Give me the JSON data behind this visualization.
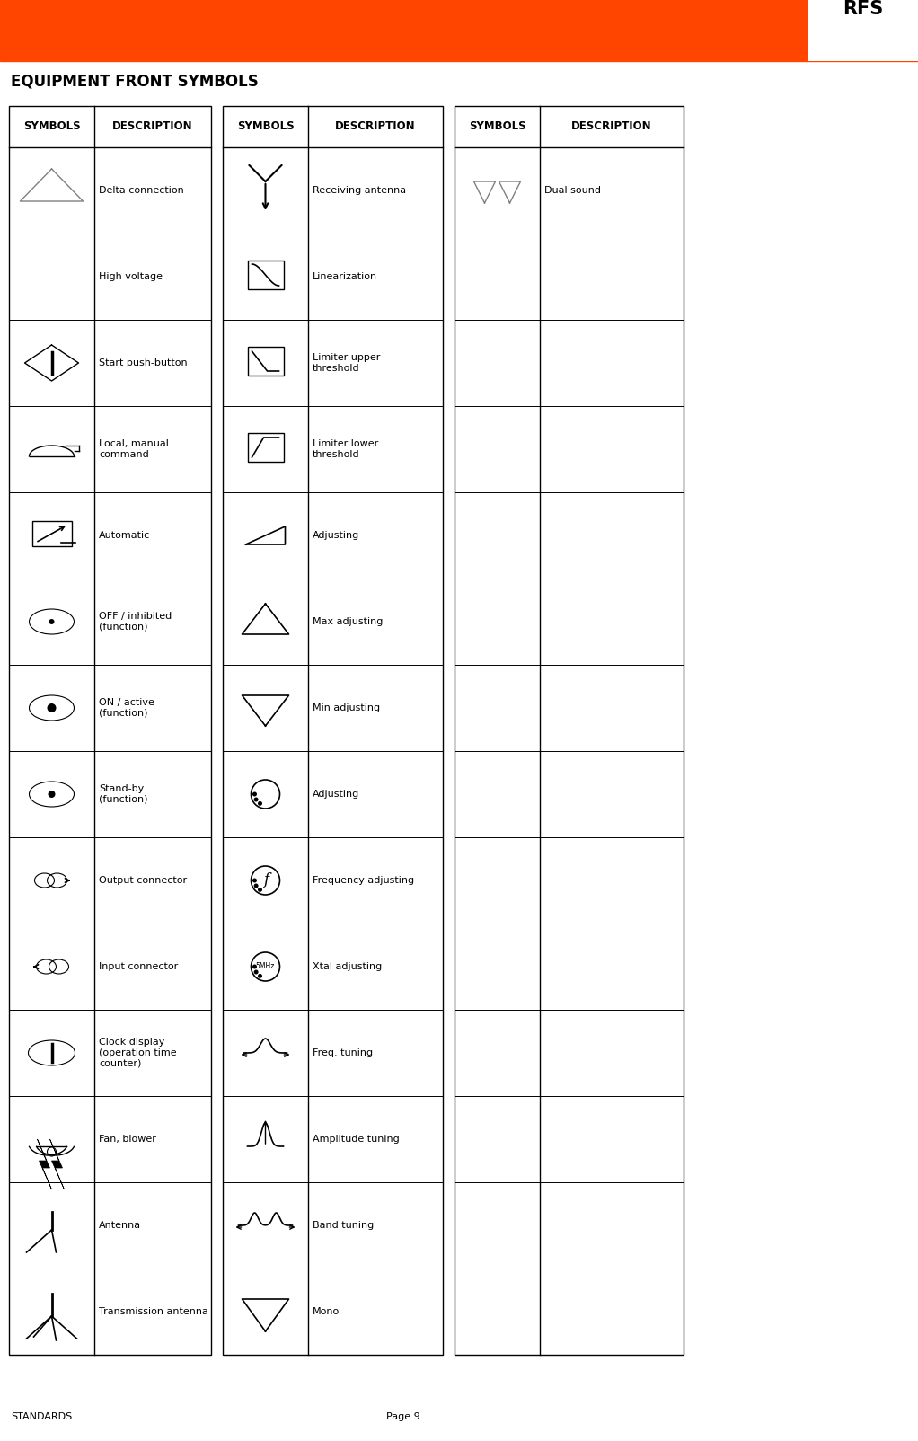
{
  "title": "EQUIPMENT FRONT SYMBOLS",
  "header_bg": "#FF4500",
  "rfs_text": "RFS",
  "page_label": "STANDARDS",
  "page_number": "Page 9",
  "rows_col1": [
    "Delta connection",
    "High voltage",
    "Start push-button",
    "Local, manual\ncommand",
    "Automatic",
    "OFF / inhibited\n(function)",
    "ON / active\n(function)",
    "Stand-by\n(function)",
    "Output connector",
    "Input connector",
    "Clock display\n(operation time\ncounter)",
    "Fan, blower",
    "Antenna",
    "Transmission antenna"
  ],
  "rows_col2": [
    "Receiving antenna",
    "Linearization",
    "Limiter upper\nthreshold",
    "Limiter lower\nthreshold",
    "Adjusting",
    "Max adjusting",
    "Min adjusting",
    "Adjusting",
    "Frequency adjusting",
    "Xtal adjusting",
    "Freq. tuning",
    "Amplitude tuning",
    "Band tuning",
    "Mono"
  ],
  "rows_col3": [
    "Dual sound",
    "",
    "",
    "",
    "",
    "",
    "",
    "",
    "",
    "",
    "",
    "",
    "",
    ""
  ],
  "orange": "#FF4500",
  "black": "#000000",
  "white": "#FFFFFF"
}
